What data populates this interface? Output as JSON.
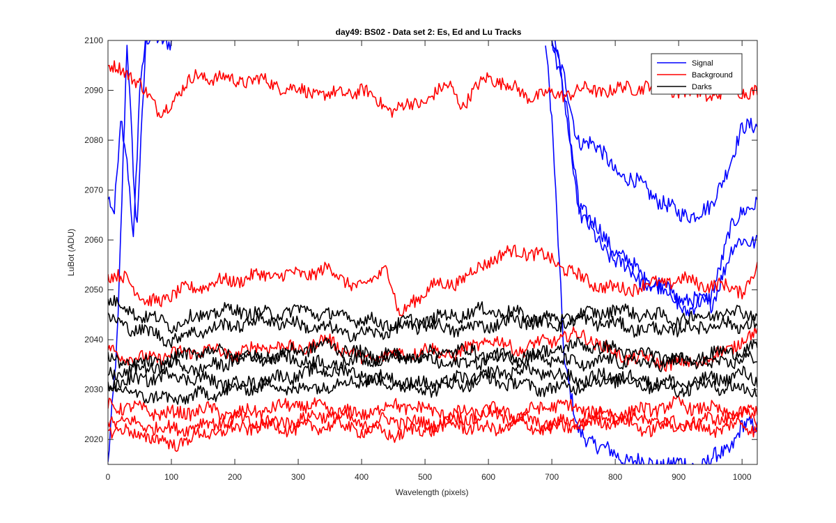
{
  "chart_data": {
    "type": "line",
    "title": "day49: BS02 - Data set 2: Es, Ed and Lu Tracks",
    "xlabel": "Wavelength (pixels)",
    "ylabel": "LuBot (ADU)",
    "xlim": [
      0,
      1024
    ],
    "ylim": [
      2015,
      2100
    ],
    "xticks": [
      0,
      100,
      200,
      300,
      400,
      500,
      600,
      700,
      800,
      900,
      1000
    ],
    "yticks": [
      2020,
      2030,
      2040,
      2050,
      2060,
      2070,
      2080,
      2090,
      2100
    ],
    "grid": false,
    "legend_position": "top-right",
    "colors": {
      "Signal": "#0000ff",
      "Background": "#ff0000",
      "Darks": "#000000"
    },
    "legend": [
      "Signal",
      "Background",
      "Darks"
    ],
    "series": [
      {
        "name": "Signal",
        "color": "#0000ff",
        "x": [
          0,
          15,
          30,
          45,
          60,
          80,
          100
        ],
        "y": [
          2015,
          2040,
          2100,
          2062,
          2100,
          2100,
          2100
        ]
      },
      {
        "name": "Signal",
        "color": "#0000ff",
        "x": [
          0,
          10,
          20,
          30,
          40,
          50,
          60
        ],
        "y": [
          2068,
          2065,
          2085,
          2077,
          2060,
          2090,
          2100
        ]
      },
      {
        "name": "Signal",
        "color": "#0000ff",
        "x": [
          690,
          700,
          710,
          720,
          740,
          780,
          820,
          860,
          900,
          940,
          980,
          1000,
          1024
        ],
        "y": [
          2100,
          2085,
          2060,
          2035,
          2022,
          2018,
          2016,
          2015,
          2015,
          2015,
          2018,
          2023,
          2022
        ]
      },
      {
        "name": "Signal",
        "color": "#0000ff",
        "x": [
          700,
          720,
          740,
          760,
          800,
          850,
          900,
          950,
          1000,
          1024
        ],
        "y": [
          2100,
          2092,
          2080,
          2080,
          2074,
          2070,
          2065,
          2066,
          2082,
          2083
        ]
      },
      {
        "name": "Signal",
        "color": "#0000ff",
        "x": [
          700,
          720,
          740,
          760,
          800,
          850,
          880,
          910,
          950,
          980,
          1000,
          1024
        ],
        "y": [
          2100,
          2088,
          2068,
          2064,
          2058,
          2052,
          2050,
          2046,
          2048,
          2062,
          2065,
          2068
        ]
      },
      {
        "name": "Signal",
        "color": "#0000ff",
        "x": [
          705,
          725,
          745,
          770,
          800,
          840,
          880,
          910,
          950,
          985,
          1000,
          1024
        ],
        "y": [
          2100,
          2085,
          2065,
          2060,
          2056,
          2052,
          2050,
          2048,
          2047,
          2058,
          2060,
          2060
        ]
      },
      {
        "name": "Background",
        "color": "#ff0000",
        "x": [
          0,
          50,
          80,
          100,
          140,
          200,
          240,
          300,
          350,
          400,
          450,
          500,
          540,
          560,
          600,
          660,
          700,
          750,
          800,
          850,
          900,
          950,
          1000,
          1024
        ],
        "y": [
          2095,
          2092,
          2085,
          2088,
          2093,
          2092,
          2092,
          2090,
          2089,
          2090,
          2086,
          2088,
          2091,
          2087,
          2093,
          2089,
          2089,
          2090,
          2090,
          2091,
          2090,
          2089,
          2090,
          2090
        ]
      },
      {
        "name": "Background",
        "color": "#ff0000",
        "x": [
          0,
          30,
          60,
          100,
          150,
          200,
          250,
          300,
          350,
          400,
          440,
          460,
          480,
          520,
          560,
          600,
          650,
          700,
          750,
          800,
          850,
          900,
          950,
          1000,
          1024
        ],
        "y": [
          2052,
          2053,
          2047,
          2049,
          2051,
          2052,
          2053,
          2053,
          2054,
          2050,
          2055,
          2044,
          2048,
          2051,
          2052,
          2056,
          2058,
          2056,
          2052,
          2050,
          2051,
          2052,
          2051,
          2050,
          2054
        ]
      },
      {
        "name": "Background",
        "color": "#ff0000",
        "x": [
          0,
          50,
          100,
          150,
          200,
          250,
          300,
          350,
          400,
          450,
          500,
          550,
          600,
          650,
          700,
          750,
          800,
          850,
          900,
          950,
          1000,
          1024
        ],
        "y": [
          2038,
          2036,
          2037,
          2038,
          2037,
          2039,
          2038,
          2040,
          2036,
          2037,
          2038,
          2037,
          2040,
          2038,
          2040,
          2041,
          2037,
          2036,
          2035,
          2036,
          2040,
          2041
        ]
      },
      {
        "name": "Background",
        "color": "#ff0000",
        "x": [
          0,
          50,
          100,
          150,
          200,
          250,
          300,
          350,
          400,
          450,
          500,
          550,
          600,
          650,
          700,
          750,
          800,
          850,
          900,
          950,
          1000,
          1024
        ],
        "y": [
          2027,
          2026,
          2025,
          2026,
          2025,
          2026,
          2027,
          2026,
          2025,
          2027,
          2026,
          2025,
          2026,
          2025,
          2027,
          2026,
          2025,
          2026,
          2027,
          2026,
          2025,
          2026
        ]
      },
      {
        "name": "Background",
        "color": "#ff0000",
        "x": [
          0,
          50,
          100,
          150,
          200,
          250,
          300,
          350,
          400,
          450,
          500,
          550,
          600,
          650,
          700,
          750,
          800,
          850,
          900,
          950,
          1000,
          1024
        ],
        "y": [
          2024,
          2023,
          2022,
          2023,
          2024,
          2023,
          2024,
          2025,
          2023,
          2024,
          2023,
          2024,
          2025,
          2024,
          2023,
          2024,
          2025,
          2024,
          2023,
          2024,
          2025,
          2024
        ]
      },
      {
        "name": "Background",
        "color": "#ff0000",
        "x": [
          0,
          50,
          100,
          150,
          200,
          250,
          300,
          350,
          400,
          450,
          500,
          550,
          600,
          650,
          700,
          750,
          800,
          850,
          900,
          950,
          1000,
          1024
        ],
        "y": [
          2022,
          2021,
          2019,
          2021,
          2022,
          2023,
          2022,
          2023,
          2022,
          2021,
          2022,
          2023,
          2022,
          2023,
          2022,
          2023,
          2024,
          2022,
          2023,
          2022,
          2023,
          2022
        ]
      },
      {
        "name": "Darks",
        "color": "#000000",
        "x": [
          0,
          50,
          100,
          150,
          200,
          250,
          300,
          350,
          400,
          450,
          500,
          550,
          600,
          650,
          700,
          750,
          800,
          850,
          900,
          950,
          1000,
          1024
        ],
        "y": [
          2048,
          2045,
          2043,
          2045,
          2046,
          2045,
          2046,
          2045,
          2044,
          2043,
          2044,
          2045,
          2046,
          2045,
          2044,
          2045,
          2046,
          2045,
          2044,
          2045,
          2046,
          2045
        ]
      },
      {
        "name": "Darks",
        "color": "#000000",
        "x": [
          0,
          50,
          100,
          150,
          200,
          250,
          300,
          350,
          400,
          450,
          500,
          550,
          600,
          650,
          700,
          750,
          800,
          850,
          900,
          950,
          1000,
          1024
        ],
        "y": [
          2044,
          2042,
          2040,
          2042,
          2043,
          2044,
          2043,
          2042,
          2041,
          2042,
          2043,
          2042,
          2043,
          2044,
          2043,
          2044,
          2043,
          2042,
          2042,
          2043,
          2043,
          2043
        ]
      },
      {
        "name": "Darks",
        "color": "#000000",
        "x": [
          0,
          50,
          100,
          150,
          200,
          250,
          300,
          350,
          400,
          450,
          500,
          550,
          600,
          650,
          700,
          750,
          800,
          850,
          900,
          950,
          1000,
          1024
        ],
        "y": [
          2036,
          2035,
          2036,
          2038,
          2037,
          2036,
          2038,
          2039,
          2037,
          2036,
          2037,
          2038,
          2037,
          2036,
          2038,
          2039,
          2038,
          2037,
          2036,
          2037,
          2038,
          2038
        ]
      },
      {
        "name": "Darks",
        "color": "#000000",
        "x": [
          0,
          50,
          100,
          150,
          200,
          250,
          300,
          350,
          400,
          450,
          500,
          550,
          600,
          650,
          700,
          750,
          800,
          850,
          900,
          950,
          1000,
          1024
        ],
        "y": [
          2033,
          2034,
          2035,
          2034,
          2036,
          2037,
          2036,
          2035,
          2036,
          2037,
          2036,
          2035,
          2036,
          2037,
          2036,
          2035,
          2036,
          2035,
          2036,
          2035,
          2036,
          2036
        ]
      },
      {
        "name": "Darks",
        "color": "#000000",
        "x": [
          0,
          50,
          100,
          150,
          200,
          250,
          300,
          350,
          400,
          450,
          500,
          550,
          600,
          650,
          700,
          750,
          800,
          850,
          900,
          950,
          1000,
          1024
        ],
        "y": [
          2031,
          2032,
          2033,
          2032,
          2031,
          2032,
          2033,
          2034,
          2033,
          2032,
          2031,
          2032,
          2033,
          2034,
          2033,
          2032,
          2033,
          2032,
          2031,
          2032,
          2033,
          2032
        ]
      },
      {
        "name": "Darks",
        "color": "#000000",
        "x": [
          0,
          50,
          100,
          150,
          200,
          250,
          300,
          350,
          400,
          450,
          500,
          550,
          600,
          650,
          700,
          750,
          800,
          850,
          900,
          950,
          1000,
          1024
        ],
        "y": [
          2030,
          2029,
          2028,
          2029,
          2030,
          2031,
          2030,
          2031,
          2032,
          2031,
          2030,
          2031,
          2032,
          2031,
          2030,
          2031,
          2032,
          2031,
          2030,
          2031,
          2030,
          2030
        ]
      }
    ]
  }
}
